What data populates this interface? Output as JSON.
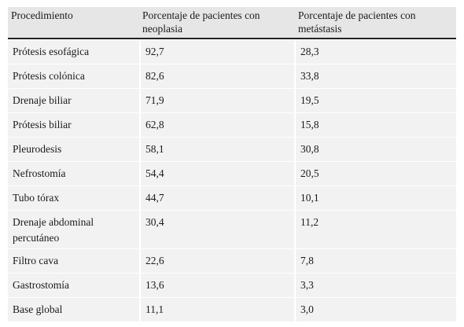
{
  "table": {
    "headers": [
      "Procedimiento",
      "Porcentaje de pacientes con neoplasia",
      "Porcentaje de pacientes con metástasis"
    ],
    "rows": [
      [
        "Prótesis esofágica",
        "92,7",
        "28,3"
      ],
      [
        "Prótesis colónica",
        "82,6",
        "33,8"
      ],
      [
        "Drenaje biliar",
        "71,9",
        "19,5"
      ],
      [
        "Prótesis biliar",
        "62,8",
        "15,8"
      ],
      [
        "Pleurodesis",
        "58,1",
        "30,8"
      ],
      [
        "Nefrostomía",
        "54,4",
        "20,5"
      ],
      [
        "Tubo tórax",
        "44,7",
        "10,1"
      ],
      [
        "Drenaje abdominal percutáneo",
        "30,4",
        "11,2"
      ],
      [
        "Filtro cava",
        "22,6",
        "7,8"
      ],
      [
        "Gastrostomía",
        "13,6",
        "3,3"
      ],
      [
        "Base global",
        "11,1",
        "3,0"
      ]
    ]
  }
}
